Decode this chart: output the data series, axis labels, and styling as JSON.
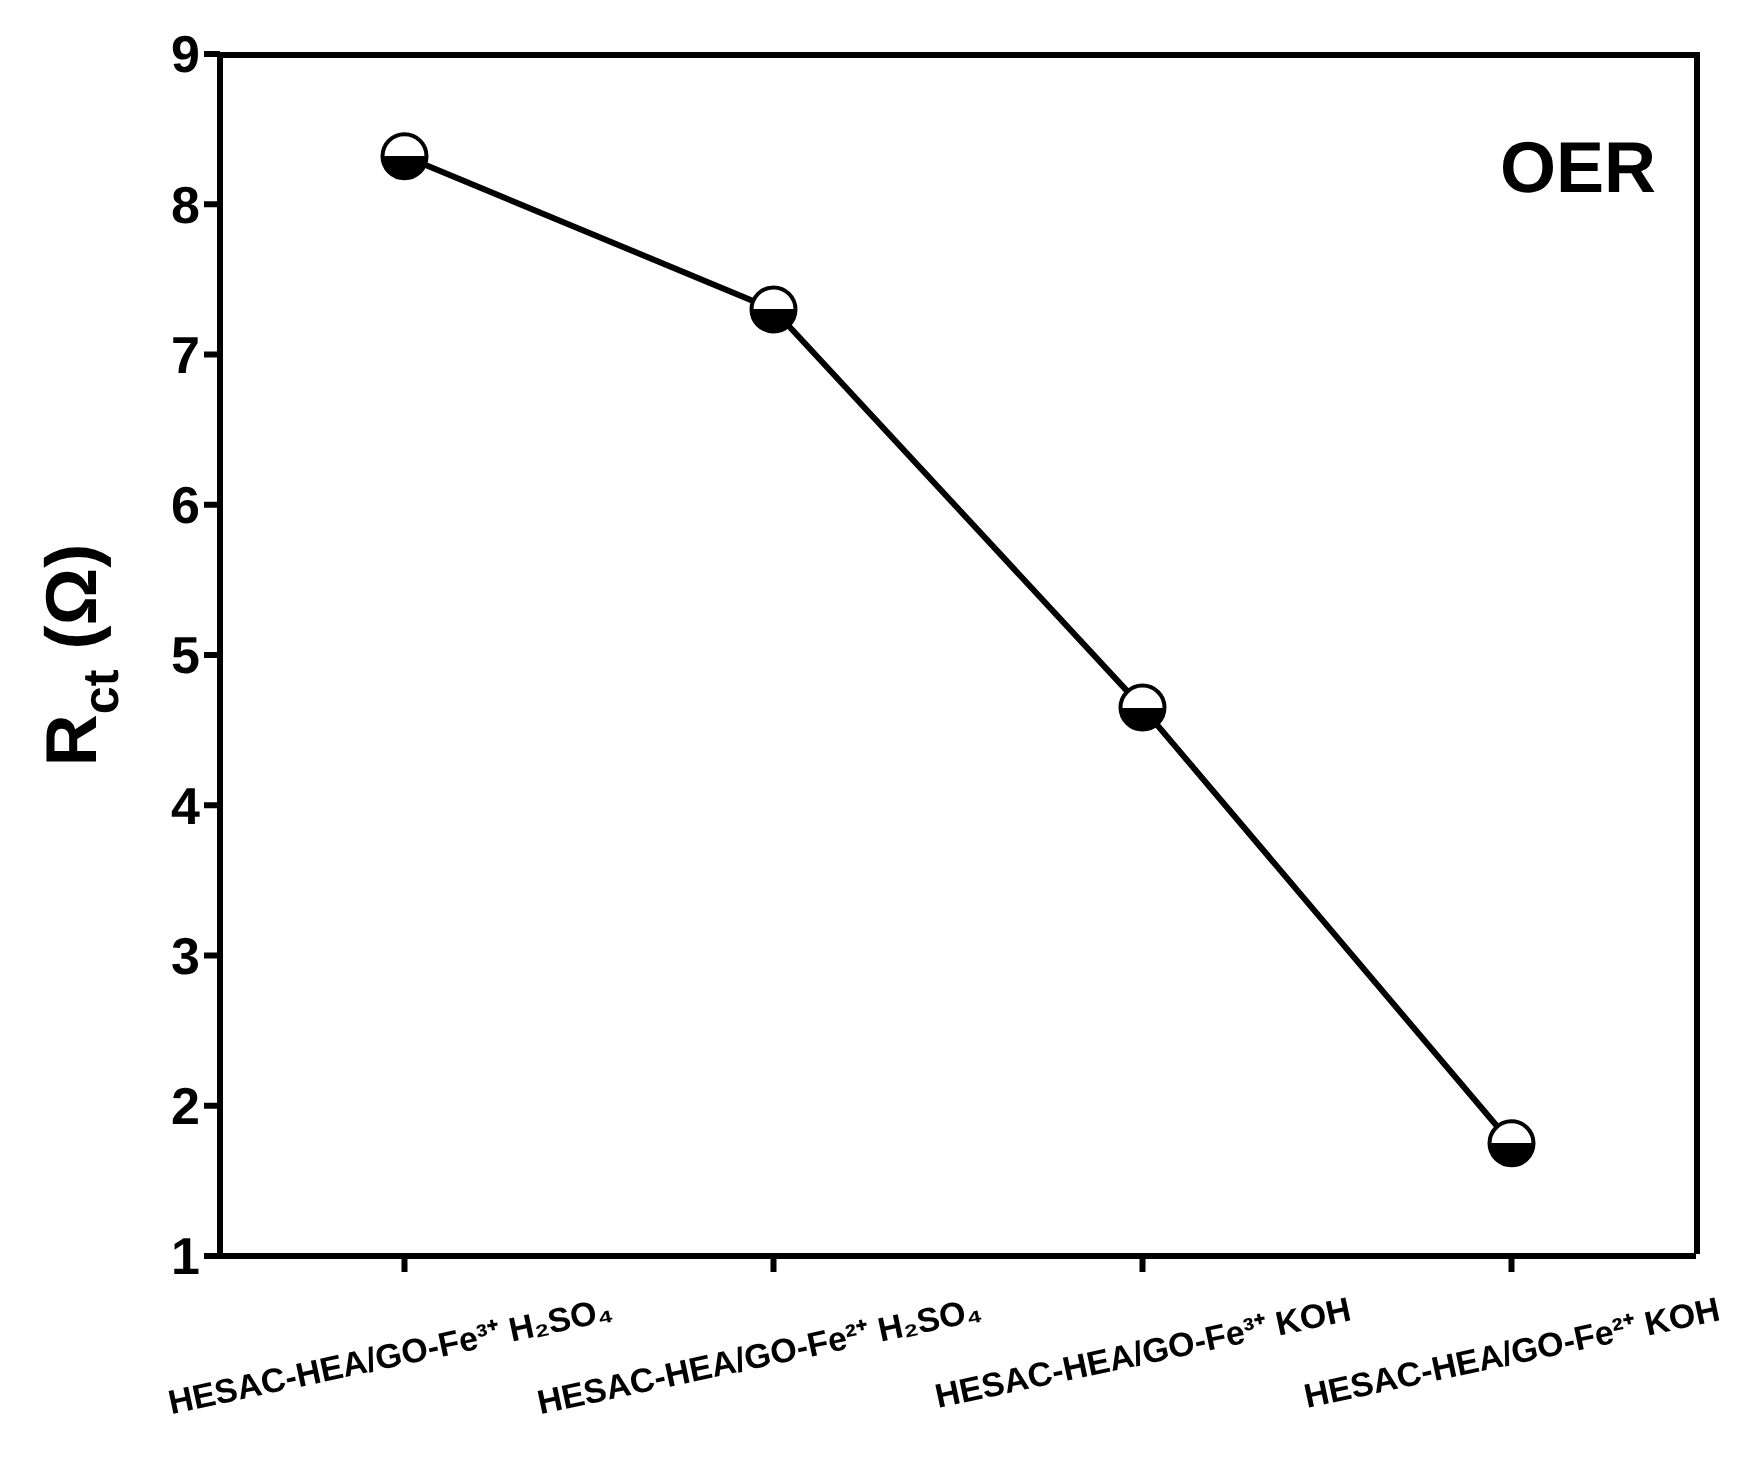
{
  "chart_data": {
    "type": "line",
    "ylabel": "R$_{ct}$ (Ω)",
    "categories": [
      "HESAC-HEA/GO-Fe³⁺ H₂SO₄",
      "HESAC-HEA/GO-Fe²⁺ H₂SO₄",
      "HESAC-HEA/GO-Fe³⁺ KOH",
      "HESAC-HEA/GO-Fe²⁺ KOH"
    ],
    "series": [
      {
        "color": "#000000",
        "values": [
          8.32,
          7.3,
          4.65,
          1.75
        ]
      }
    ],
    "ylim": [
      1,
      9
    ],
    "yticks": [
      1,
      2,
      3,
      4,
      5,
      6,
      7,
      8,
      9
    ],
    "marker": "circle",
    "line_style": "solid",
    "annotations": [
      "OER"
    ]
  }
}
